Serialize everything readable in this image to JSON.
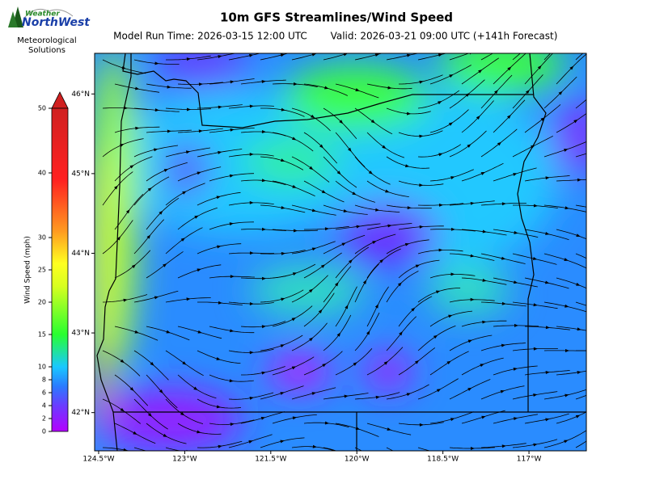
{
  "header": {
    "logo_top": "Weather",
    "logo_brand": "NorthWest",
    "logo_sub_1": "Meteorological",
    "logo_sub_2": "Solutions"
  },
  "chart_data": {
    "type": "map",
    "title": "10m GFS Streamlines/Wind Speed",
    "subtitle_run": "Model Run Time: 2026-03-15 12:00 UTC",
    "subtitle_valid": "Valid: 2026-03-21 09:00 UTC  (+141h Forecast)",
    "xlim": [
      -124.57,
      -116.0
    ],
    "xticks": [
      {
        "value": -124.5,
        "label": "124.5°W"
      },
      {
        "value": -123,
        "label": "123°W"
      },
      {
        "value": -121.5,
        "label": "121.5°W"
      },
      {
        "value": -120,
        "label": "120°W"
      },
      {
        "value": -118.5,
        "label": "118.5°W"
      },
      {
        "value": -117,
        "label": "117°W"
      }
    ],
    "ylim": [
      41.52,
      46.51
    ],
    "yticks": [
      {
        "value": 42,
        "label": "42°N"
      },
      {
        "value": 43,
        "label": "43°N"
      },
      {
        "value": 44,
        "label": "44°N"
      },
      {
        "value": 45,
        "label": "45°N"
      },
      {
        "value": 46,
        "label": "46°N"
      }
    ],
    "colorbar": {
      "label": "Wind Speed (mph)",
      "lim": [
        0,
        50
      ],
      "ticks": [
        0,
        2,
        4,
        6,
        8,
        10,
        15,
        20,
        25,
        30,
        40,
        50
      ]
    }
  }
}
